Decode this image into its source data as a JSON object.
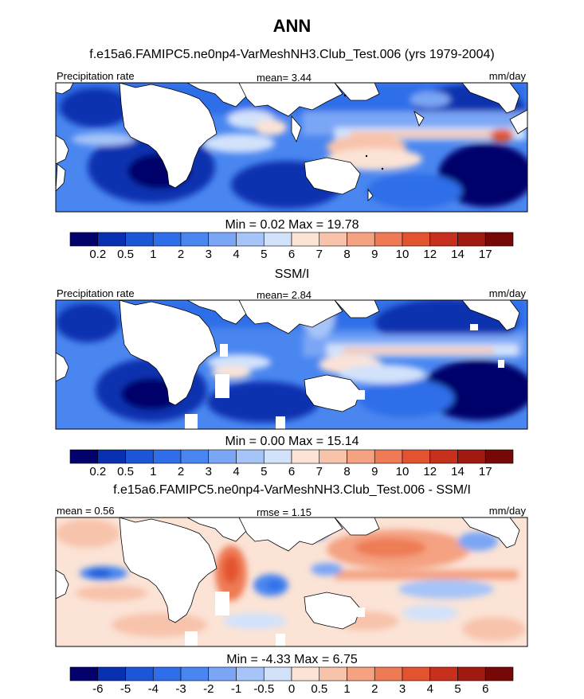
{
  "title": "ANN",
  "panels": [
    {
      "subtitle": "f.e15a6.FAMIPC5.ne0np4-VarMeshNH3.Club_Test.006 (yrs 1979-2004)",
      "left_label": "Precipitation rate",
      "center_label": "mean=   3.44",
      "right_label": "mm/day",
      "minmax": "Min =   0.02 Max =  19.78"
    },
    {
      "subtitle": "SSM/I",
      "left_label": "Precipitation rate",
      "center_label": "mean=   2.84",
      "right_label": "mm/day",
      "minmax": "Min =   0.00 Max =  15.14"
    },
    {
      "subtitle": "f.e15a6.FAMIPC5.ne0np4-VarMeshNH3.Club_Test.006 - SSM/I",
      "left_label": "mean =   0.56",
      "center_label": "rmse =   1.15",
      "right_label": "mm/day",
      "minmax": "Min =  -4.33 Max =   6.75"
    }
  ],
  "colorbars": {
    "abs": {
      "ticks": [
        "0.2",
        "0.5",
        "1",
        "2",
        "3",
        "4",
        "5",
        "6",
        "7",
        "8",
        "9",
        "10",
        "12",
        "14",
        "17"
      ],
      "colors": [
        "#03016b",
        "#0830b0",
        "#1a56d6",
        "#2f6ee8",
        "#4a86f0",
        "#7aa6f5",
        "#a6c4f8",
        "#d2e2fb",
        "#fbe3d6",
        "#f8c3ab",
        "#f4a282",
        "#ee7b55",
        "#e4532f",
        "#c6301c",
        "#a01a12",
        "#770808"
      ]
    },
    "diff": {
      "ticks": [
        "-6",
        "-5",
        "-4",
        "-3",
        "-2",
        "-1",
        "-0.5",
        "0",
        "0.5",
        "1",
        "2",
        "3",
        "4",
        "5",
        "6"
      ],
      "colors": [
        "#03016b",
        "#0830b0",
        "#1a56d6",
        "#2f6ee8",
        "#4a86f0",
        "#7aa6f5",
        "#a6c4f8",
        "#d2e2fb",
        "#fbe3d6",
        "#f8c3ab",
        "#f4a282",
        "#ee7b55",
        "#e4532f",
        "#c6301c",
        "#a01a12",
        "#770808"
      ]
    }
  },
  "chart_data": [
    {
      "type": "heatmap",
      "title": "f.e15a6.FAMIPC5.ne0np4-VarMeshNH3.Club_Test.006 (yrs 1979-2004)",
      "variable": "Precipitation rate",
      "units": "mm/day",
      "mean": 3.44,
      "min": 0.02,
      "max": 19.78,
      "levels": [
        0.2,
        0.5,
        1,
        2,
        3,
        4,
        5,
        6,
        7,
        8,
        9,
        10,
        12,
        14,
        17
      ]
    },
    {
      "type": "heatmap",
      "title": "SSM/I",
      "variable": "Precipitation rate",
      "units": "mm/day",
      "mean": 2.84,
      "min": 0.0,
      "max": 15.14,
      "levels": [
        0.2,
        0.5,
        1,
        2,
        3,
        4,
        5,
        6,
        7,
        8,
        9,
        10,
        12,
        14,
        17
      ]
    },
    {
      "type": "heatmap",
      "title": "f.e15a6.FAMIPC5.ne0np4-VarMeshNH3.Club_Test.006 - SSM/I",
      "units": "mm/day",
      "mean": 0.56,
      "rmse": 1.15,
      "min": -4.33,
      "max": 6.75,
      "levels": [
        -6,
        -5,
        -4,
        -3,
        -2,
        -1,
        -0.5,
        0,
        0.5,
        1,
        2,
        3,
        4,
        5,
        6
      ]
    }
  ]
}
